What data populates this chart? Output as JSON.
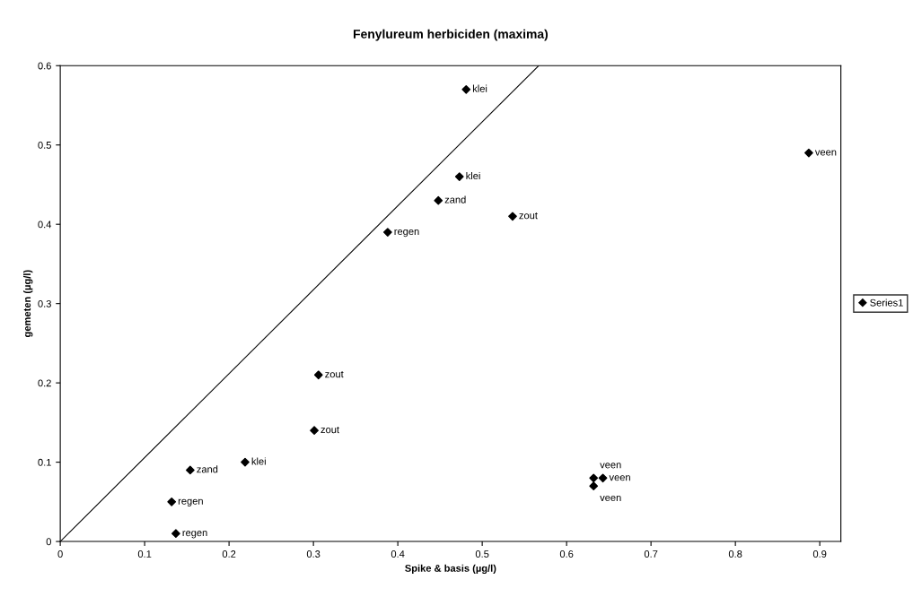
{
  "chart_data": {
    "type": "scatter",
    "title": "Fenylureum herbiciden (maxima)",
    "xlabel": "Spike & basis (µg/l)",
    "ylabel": "gemeten (µg/l)",
    "xlim": [
      0,
      0.925
    ],
    "xticks": [
      0,
      0.1,
      0.2,
      0.3,
      0.4,
      0.5,
      0.6,
      0.7,
      0.8,
      0.9
    ],
    "ylim": [
      0,
      0.6
    ],
    "yticks": [
      0,
      0.1,
      0.2,
      0.3,
      0.4,
      0.5,
      0.6
    ],
    "grid": false,
    "legend": "right",
    "marker": "diamond",
    "series": [
      {
        "name": "Series1",
        "color": "#000000",
        "x": [
          0.481,
          0.887,
          0.473,
          0.448,
          0.536,
          0.388,
          0.306,
          0.301,
          0.154,
          0.219,
          0.132,
          0.137,
          0.632,
          0.643,
          0.632
        ],
        "values": [
          0.57,
          0.49,
          0.46,
          0.43,
          0.41,
          0.39,
          0.21,
          0.14,
          0.09,
          0.1,
          0.05,
          0.01,
          0.08,
          0.08,
          0.07
        ]
      },
      {
        "type": "line",
        "color": "#000000",
        "marker": "none",
        "x": [
          0,
          0.567
        ],
        "values": [
          0,
          0.6
        ]
      }
    ],
    "annotations": [
      {
        "text": "klei",
        "x": 0.481,
        "y": 0.57
      },
      {
        "text": "veen",
        "x": 0.887,
        "y": 0.49
      },
      {
        "text": "klei",
        "x": 0.473,
        "y": 0.46
      },
      {
        "text": "zand",
        "x": 0.448,
        "y": 0.43
      },
      {
        "text": "zout",
        "x": 0.536,
        "y": 0.41
      },
      {
        "text": "regen",
        "x": 0.388,
        "y": 0.39
      },
      {
        "text": "zout",
        "x": 0.306,
        "y": 0.21
      },
      {
        "text": "zout",
        "x": 0.301,
        "y": 0.14
      },
      {
        "text": "zand",
        "x": 0.154,
        "y": 0.09
      },
      {
        "text": "klei",
        "x": 0.219,
        "y": 0.1
      },
      {
        "text": "regen",
        "x": 0.132,
        "y": 0.05
      },
      {
        "text": "regen",
        "x": 0.137,
        "y": 0.01
      },
      {
        "text": "veen",
        "x": 0.632,
        "y": 0.08
      },
      {
        "text": "veen",
        "x": 0.643,
        "y": 0.08
      },
      {
        "text": "veen",
        "x": 0.632,
        "y": 0.07
      }
    ]
  }
}
